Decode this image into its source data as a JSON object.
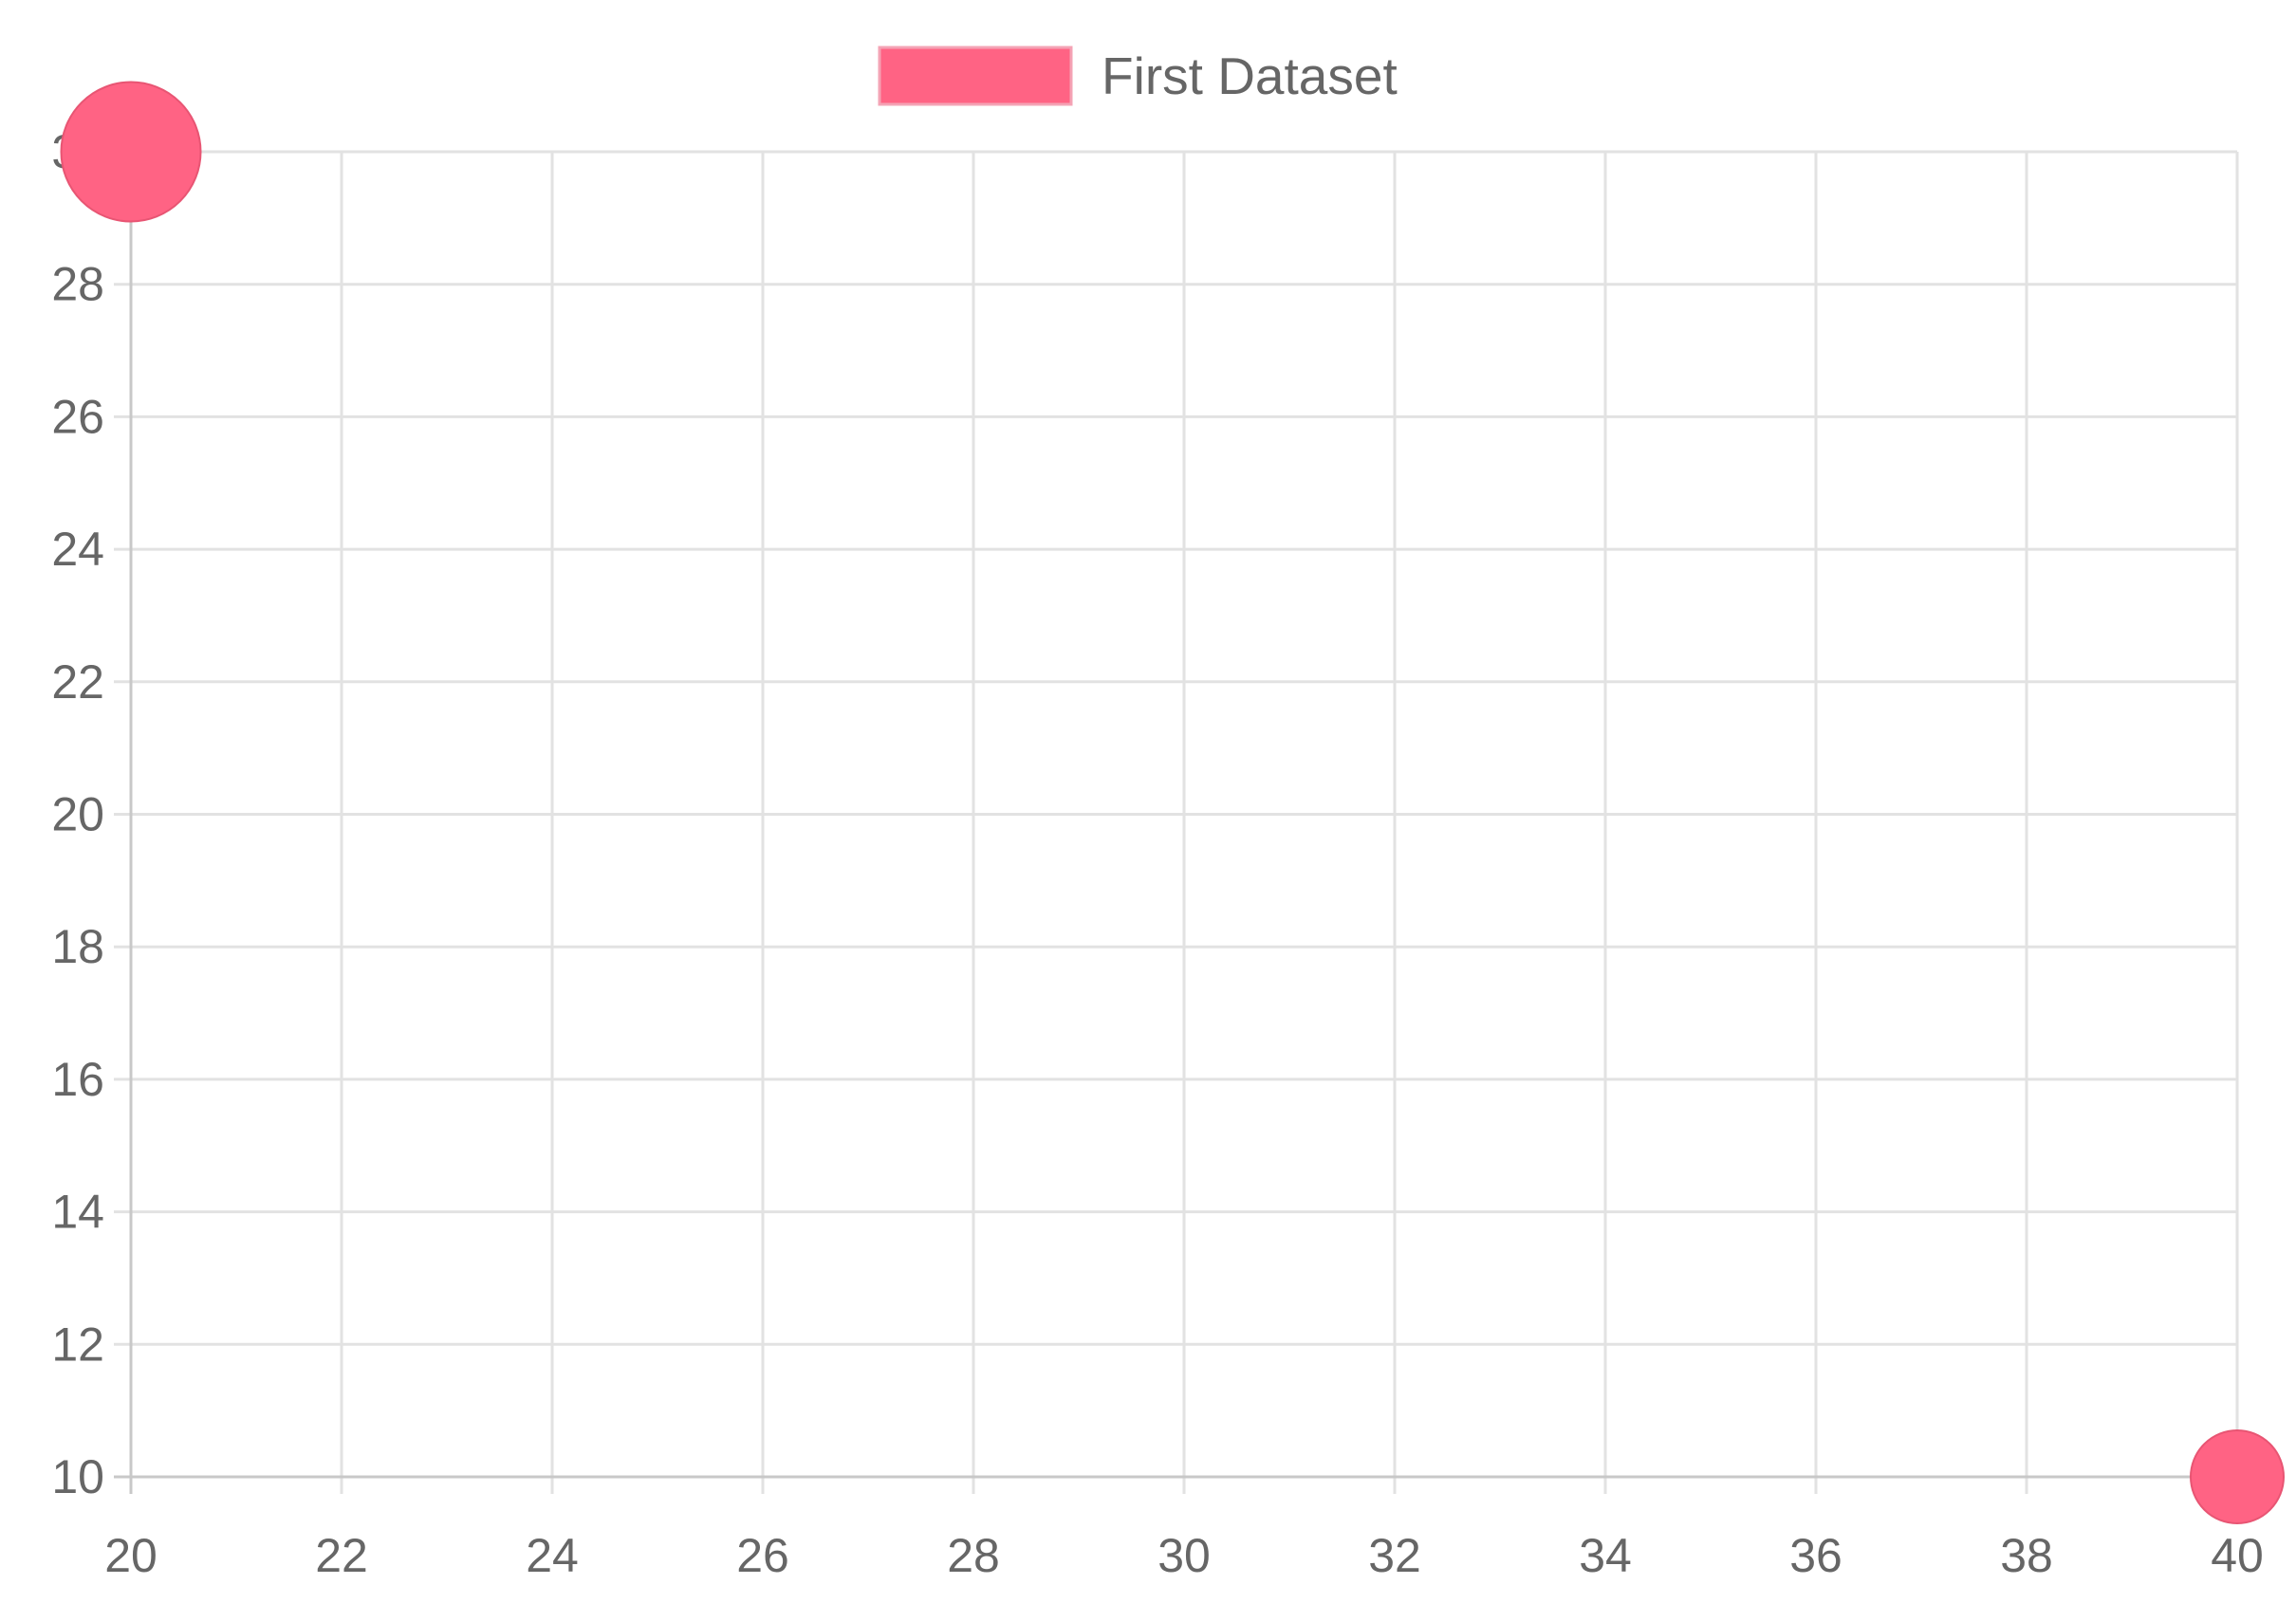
{
  "chart_data": {
    "type": "bubble",
    "title": "",
    "xlabel": "",
    "ylabel": "",
    "xlim": [
      20,
      40
    ],
    "ylim": [
      10,
      30
    ],
    "x_ticks": [
      "20",
      "22",
      "24",
      "26",
      "28",
      "30",
      "32",
      "34",
      "36",
      "38",
      "40"
    ],
    "y_ticks": [
      "10",
      "12",
      "14",
      "16",
      "18",
      "20",
      "22",
      "24",
      "26",
      "28",
      "30"
    ],
    "grid": true,
    "legend_position": "top-center",
    "series": [
      {
        "name": "First Dataset",
        "color": "#ff6384",
        "points": [
          {
            "x": 20,
            "y": 30,
            "r": 15
          },
          {
            "x": 40,
            "y": 10,
            "r": 10
          }
        ]
      }
    ]
  }
}
